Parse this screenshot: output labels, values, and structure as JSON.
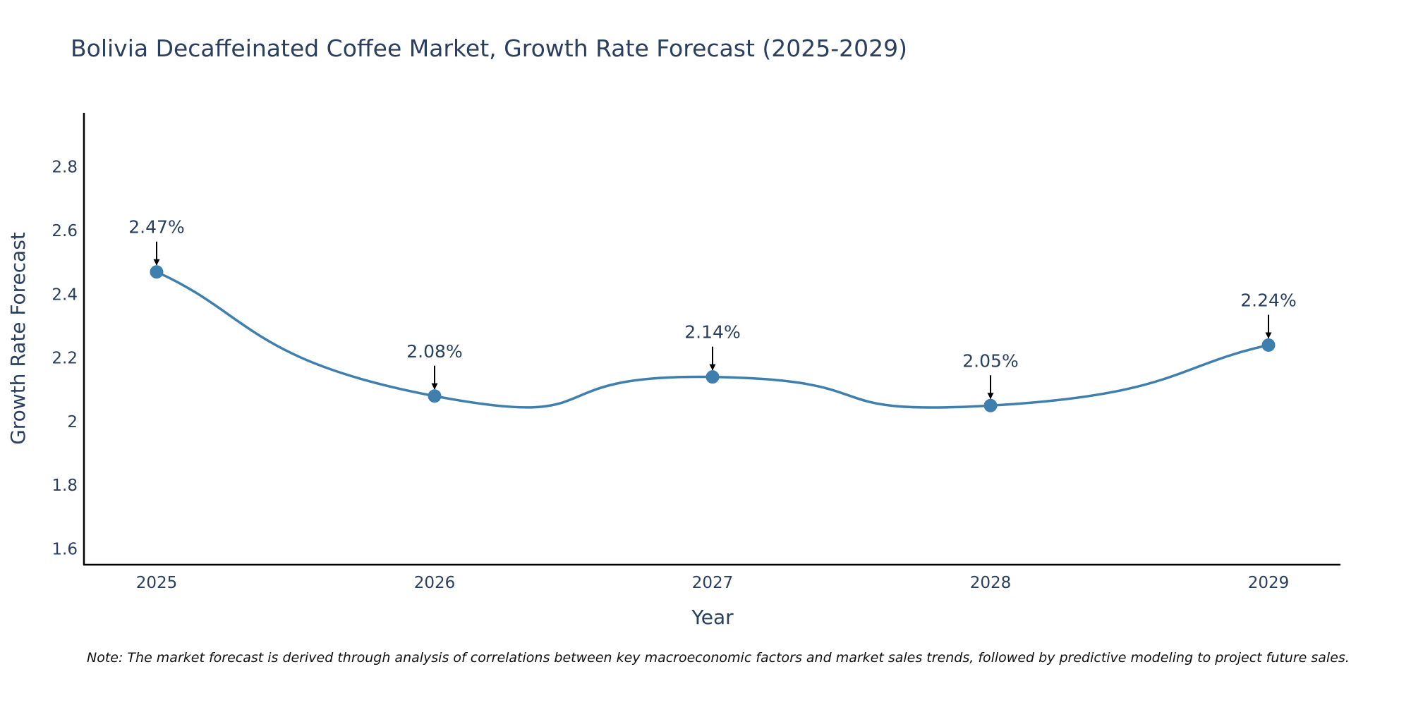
{
  "chart_data": {
    "type": "line",
    "title": "Bolivia Decaffeinated Coffee Market, Growth Rate Forecast (2025-2029)",
    "xlabel": "Year",
    "ylabel": "Growth Rate Forecast",
    "categories": [
      "2025",
      "2026",
      "2027",
      "2028",
      "2029"
    ],
    "series": [
      {
        "name": "Growth Rate Forecast",
        "values": [
          2.47,
          2.08,
          2.14,
          2.05,
          2.24
        ],
        "labels": [
          "2.47%",
          "2.08%",
          "2.14%",
          "2.05%",
          "2.24%"
        ]
      }
    ],
    "ylim": [
      1.55,
      2.97
    ],
    "yticks": [
      1.6,
      1.8,
      2.0,
      2.2,
      2.4,
      2.6,
      2.8
    ],
    "ytick_labels": [
      "1.6",
      "1.8",
      "2",
      "2.2",
      "2.4",
      "2.6",
      "2.8"
    ],
    "line_shape": "spline",
    "grid": false,
    "line_color": "#3f7fae",
    "marker_color": "#3f7fae",
    "arrow_color": "#000000",
    "note": "Note: The market forecast is derived through analysis of correlations between key macroeconomic factors and market sales trends, followed by predictive modeling to project future sales."
  }
}
